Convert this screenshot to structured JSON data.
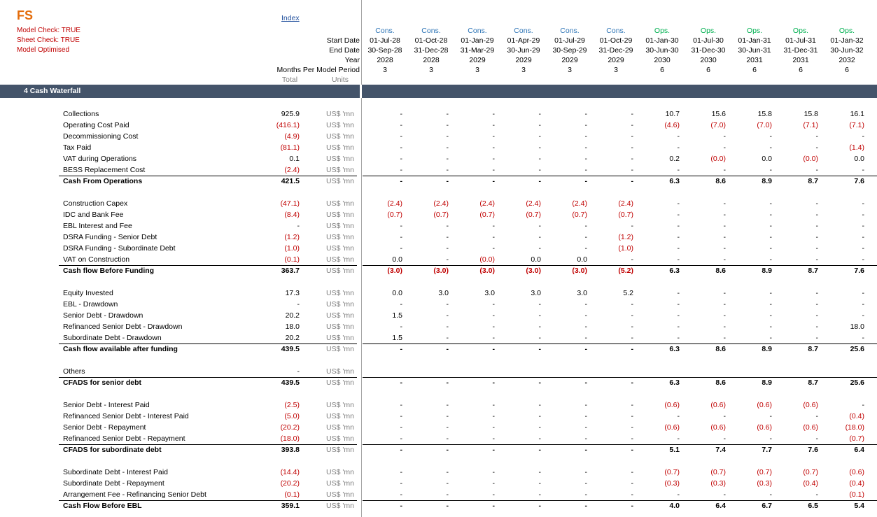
{
  "sheet": {
    "logo": "FS",
    "checks": [
      "Model Check: TRUE",
      "Sheet Check: TRUE",
      "Model Optimised"
    ],
    "index_link": "Index",
    "header_labels": {
      "start_date": "Start Date",
      "end_date": "End Date",
      "year": "Year",
      "months_per_period": "Months Per Model Period",
      "total": "Total",
      "units": "Units"
    },
    "section_title": "4  Cash Waterfall"
  },
  "columns": [
    {
      "phase": "Cons.",
      "start": "01-Jul-28",
      "end": "30-Sep-28",
      "year": "2028",
      "months": "3"
    },
    {
      "phase": "Cons.",
      "start": "01-Oct-28",
      "end": "31-Dec-28",
      "year": "2028",
      "months": "3"
    },
    {
      "phase": "Cons.",
      "start": "01-Jan-29",
      "end": "31-Mar-29",
      "year": "2029",
      "months": "3"
    },
    {
      "phase": "Cons.",
      "start": "01-Apr-29",
      "end": "30-Jun-29",
      "year": "2029",
      "months": "3"
    },
    {
      "phase": "Cons.",
      "start": "01-Jul-29",
      "end": "30-Sep-29",
      "year": "2029",
      "months": "3"
    },
    {
      "phase": "Cons.",
      "start": "01-Oct-29",
      "end": "31-Dec-29",
      "year": "2029",
      "months": "3"
    },
    {
      "phase": "Ops.",
      "start": "01-Jan-30",
      "end": "30-Jun-30",
      "year": "2030",
      "months": "6"
    },
    {
      "phase": "Ops.",
      "start": "01-Jul-30",
      "end": "31-Dec-30",
      "year": "2030",
      "months": "6"
    },
    {
      "phase": "Ops.",
      "start": "01-Jan-31",
      "end": "30-Jun-31",
      "year": "2031",
      "months": "6"
    },
    {
      "phase": "Ops.",
      "start": "01-Jul-31",
      "end": "31-Dec-31",
      "year": "2031",
      "months": "6"
    },
    {
      "phase": "Ops.",
      "start": "01-Jan-32",
      "end": "30-Jun-32",
      "year": "2032",
      "months": "6"
    }
  ],
  "rows": [
    {
      "label": "Collections",
      "total": "925.9",
      "unit": "US$ 'mn",
      "v": [
        "-",
        "-",
        "-",
        "-",
        "-",
        "-",
        "10.7",
        "15.6",
        "15.8",
        "15.8",
        "16.1"
      ]
    },
    {
      "label": "Operating Cost Paid",
      "total": "(416.1)",
      "unit": "US$ 'mn",
      "v": [
        "-",
        "-",
        "-",
        "-",
        "-",
        "-",
        "(4.6)",
        "(7.0)",
        "(7.0)",
        "(7.1)",
        "(7.1)"
      ]
    },
    {
      "label": "Decommissioning Cost",
      "total": "(4.9)",
      "unit": "US$ 'mn",
      "v": [
        "-",
        "-",
        "-",
        "-",
        "-",
        "-",
        "-",
        "-",
        "-",
        "-",
        "-"
      ]
    },
    {
      "label": "Tax Paid",
      "total": "(81.1)",
      "unit": "US$ 'mn",
      "v": [
        "-",
        "-",
        "-",
        "-",
        "-",
        "-",
        "-",
        "-",
        "-",
        "-",
        "(1.4)"
      ]
    },
    {
      "label": "VAT during Operations",
      "total": "0.1",
      "unit": "US$ 'mn",
      "v": [
        "-",
        "-",
        "-",
        "-",
        "-",
        "-",
        "0.2",
        "(0.0)",
        "0.0",
        "(0.0)",
        "0.0"
      ]
    },
    {
      "label": "BESS Replacement Cost",
      "total": "(2.4)",
      "unit": "US$ 'mn",
      "v": [
        "-",
        "-",
        "-",
        "-",
        "-",
        "-",
        "-",
        "-",
        "-",
        "-",
        "-"
      ]
    },
    {
      "label": "Cash From Operations",
      "total": "421.5",
      "unit": "US$ 'mn",
      "bold": true,
      "v": [
        "-",
        "-",
        "-",
        "-",
        "-",
        "-",
        "6.3",
        "8.6",
        "8.9",
        "8.7",
        "7.6"
      ]
    },
    {
      "label": "Construction Capex",
      "total": "(47.1)",
      "unit": "US$ 'mn",
      "v": [
        "(2.4)",
        "(2.4)",
        "(2.4)",
        "(2.4)",
        "(2.4)",
        "(2.4)",
        "-",
        "-",
        "-",
        "-",
        "-"
      ]
    },
    {
      "label": "IDC and Bank Fee",
      "total": "(8.4)",
      "unit": "US$ 'mn",
      "v": [
        "(0.7)",
        "(0.7)",
        "(0.7)",
        "(0.7)",
        "(0.7)",
        "(0.7)",
        "-",
        "-",
        "-",
        "-",
        "-"
      ]
    },
    {
      "label": "EBL Interest and Fee",
      "total": "-",
      "unit": "US$ 'mn",
      "v": [
        "-",
        "-",
        "-",
        "-",
        "-",
        "-",
        "-",
        "-",
        "-",
        "-",
        "-"
      ]
    },
    {
      "label": "DSRA Funding - Senior Debt",
      "total": "(1.2)",
      "unit": "US$ 'mn",
      "v": [
        "-",
        "-",
        "-",
        "-",
        "-",
        "(1.2)",
        "-",
        "-",
        "-",
        "-",
        "-"
      ]
    },
    {
      "label": "DSRA Funding - Subordinate Debt",
      "total": "(1.0)",
      "unit": "US$ 'mn",
      "v": [
        "-",
        "-",
        "-",
        "-",
        "-",
        "(1.0)",
        "-",
        "-",
        "-",
        "-",
        "-"
      ]
    },
    {
      "label": "VAT on Construction",
      "total": "(0.1)",
      "unit": "US$ 'mn",
      "v": [
        "0.0",
        "-",
        "(0.0)",
        "0.0",
        "0.0",
        "-",
        "-",
        "-",
        "-",
        "-",
        "-"
      ]
    },
    {
      "label": "Cash flow Before Funding",
      "total": "363.7",
      "unit": "US$ 'mn",
      "bold": true,
      "v": [
        "(3.0)",
        "(3.0)",
        "(3.0)",
        "(3.0)",
        "(3.0)",
        "(5.2)",
        "6.3",
        "8.6",
        "8.9",
        "8.7",
        "7.6"
      ]
    },
    {
      "label": "Equity Invested",
      "total": "17.3",
      "unit": "US$ 'mn",
      "v": [
        "0.0",
        "3.0",
        "3.0",
        "3.0",
        "3.0",
        "5.2",
        "-",
        "-",
        "-",
        "-",
        "-"
      ]
    },
    {
      "label": "EBL - Drawdown",
      "total": "-",
      "unit": "US$ 'mn",
      "v": [
        "-",
        "-",
        "-",
        "-",
        "-",
        "-",
        "-",
        "-",
        "-",
        "-",
        "-"
      ]
    },
    {
      "label": "Senior Debt - Drawdown",
      "total": "20.2",
      "unit": "US$ 'mn",
      "v": [
        "1.5",
        "-",
        "-",
        "-",
        "-",
        "-",
        "-",
        "-",
        "-",
        "-",
        "-"
      ]
    },
    {
      "label": "Refinanced Senior Debt - Drawdown",
      "total": "18.0",
      "unit": "US$ 'mn",
      "v": [
        "-",
        "-",
        "-",
        "-",
        "-",
        "-",
        "-",
        "-",
        "-",
        "-",
        "18.0"
      ]
    },
    {
      "label": "Subordinate Debt - Drawdown",
      "total": "20.2",
      "unit": "US$ 'mn",
      "v": [
        "1.5",
        "-",
        "-",
        "-",
        "-",
        "-",
        "-",
        "-",
        "-",
        "-",
        "-"
      ]
    },
    {
      "label": "Cash flow available after funding",
      "total": "439.5",
      "unit": "US$ 'mn",
      "bold": true,
      "v": [
        "-",
        "-",
        "-",
        "-",
        "-",
        "-",
        "6.3",
        "8.6",
        "8.9",
        "8.7",
        "25.6"
      ]
    },
    {
      "label": "Others",
      "total": "-",
      "unit": "US$ 'mn",
      "v": [
        "",
        "",
        "",
        "",
        "",
        "",
        "",
        "",
        "",
        "",
        ""
      ]
    },
    {
      "label": "CFADS for senior debt",
      "total": "439.5",
      "unit": "US$ 'mn",
      "bold": true,
      "v": [
        "-",
        "-",
        "-",
        "-",
        "-",
        "-",
        "6.3",
        "8.6",
        "8.9",
        "8.7",
        "25.6"
      ]
    },
    {
      "label": "Senior Debt - Interest Paid",
      "total": "(2.5)",
      "unit": "US$ 'mn",
      "v": [
        "-",
        "-",
        "-",
        "-",
        "-",
        "-",
        "(0.6)",
        "(0.6)",
        "(0.6)",
        "(0.6)",
        "-"
      ]
    },
    {
      "label": "Refinanced Senior Debt - Interest Paid",
      "total": "(5.0)",
      "unit": "US$ 'mn",
      "v": [
        "-",
        "-",
        "-",
        "-",
        "-",
        "-",
        "-",
        "-",
        "-",
        "-",
        "(0.4)"
      ]
    },
    {
      "label": "Senior Debt - Repayment",
      "total": "(20.2)",
      "unit": "US$ 'mn",
      "v": [
        "-",
        "-",
        "-",
        "-",
        "-",
        "-",
        "(0.6)",
        "(0.6)",
        "(0.6)",
        "(0.6)",
        "(18.0)"
      ]
    },
    {
      "label": "Refinanced Senior Debt - Repayment",
      "total": "(18.0)",
      "unit": "US$ 'mn",
      "v": [
        "-",
        "-",
        "-",
        "-",
        "-",
        "-",
        "-",
        "-",
        "-",
        "-",
        "(0.7)"
      ]
    },
    {
      "label": "CFADS for subordinate debt",
      "total": "393.8",
      "unit": "US$ 'mn",
      "bold": true,
      "v": [
        "-",
        "-",
        "-",
        "-",
        "-",
        "-",
        "5.1",
        "7.4",
        "7.7",
        "7.6",
        "6.4"
      ]
    },
    {
      "label": "Subordinate Debt - Interest Paid",
      "total": "(14.4)",
      "unit": "US$ 'mn",
      "v": [
        "-",
        "-",
        "-",
        "-",
        "-",
        "-",
        "(0.7)",
        "(0.7)",
        "(0.7)",
        "(0.7)",
        "(0.6)"
      ]
    },
    {
      "label": "Subordinate Debt - Repayment",
      "total": "(20.2)",
      "unit": "US$ 'mn",
      "v": [
        "-",
        "-",
        "-",
        "-",
        "-",
        "-",
        "(0.3)",
        "(0.3)",
        "(0.3)",
        "(0.4)",
        "(0.4)"
      ]
    },
    {
      "label": "Arrangement Fee - Refinancing Senior Debt",
      "total": "(0.1)",
      "unit": "US$ 'mn",
      "v": [
        "-",
        "-",
        "-",
        "-",
        "-",
        "-",
        "-",
        "-",
        "-",
        "-",
        "(0.1)"
      ]
    },
    {
      "label": "Cash Flow Before EBL",
      "total": "359.1",
      "unit": "US$ 'mn",
      "bold": true,
      "v": [
        "-",
        "-",
        "-",
        "-",
        "-",
        "-",
        "4.0",
        "6.4",
        "6.7",
        "6.5",
        "5.4"
      ]
    }
  ],
  "colors": {
    "phase_cons": "#2e75b6",
    "phase_ops": "#00b050",
    "negative": "#c00000",
    "section_bar": "#44546a",
    "logo": "#e46c0a"
  }
}
